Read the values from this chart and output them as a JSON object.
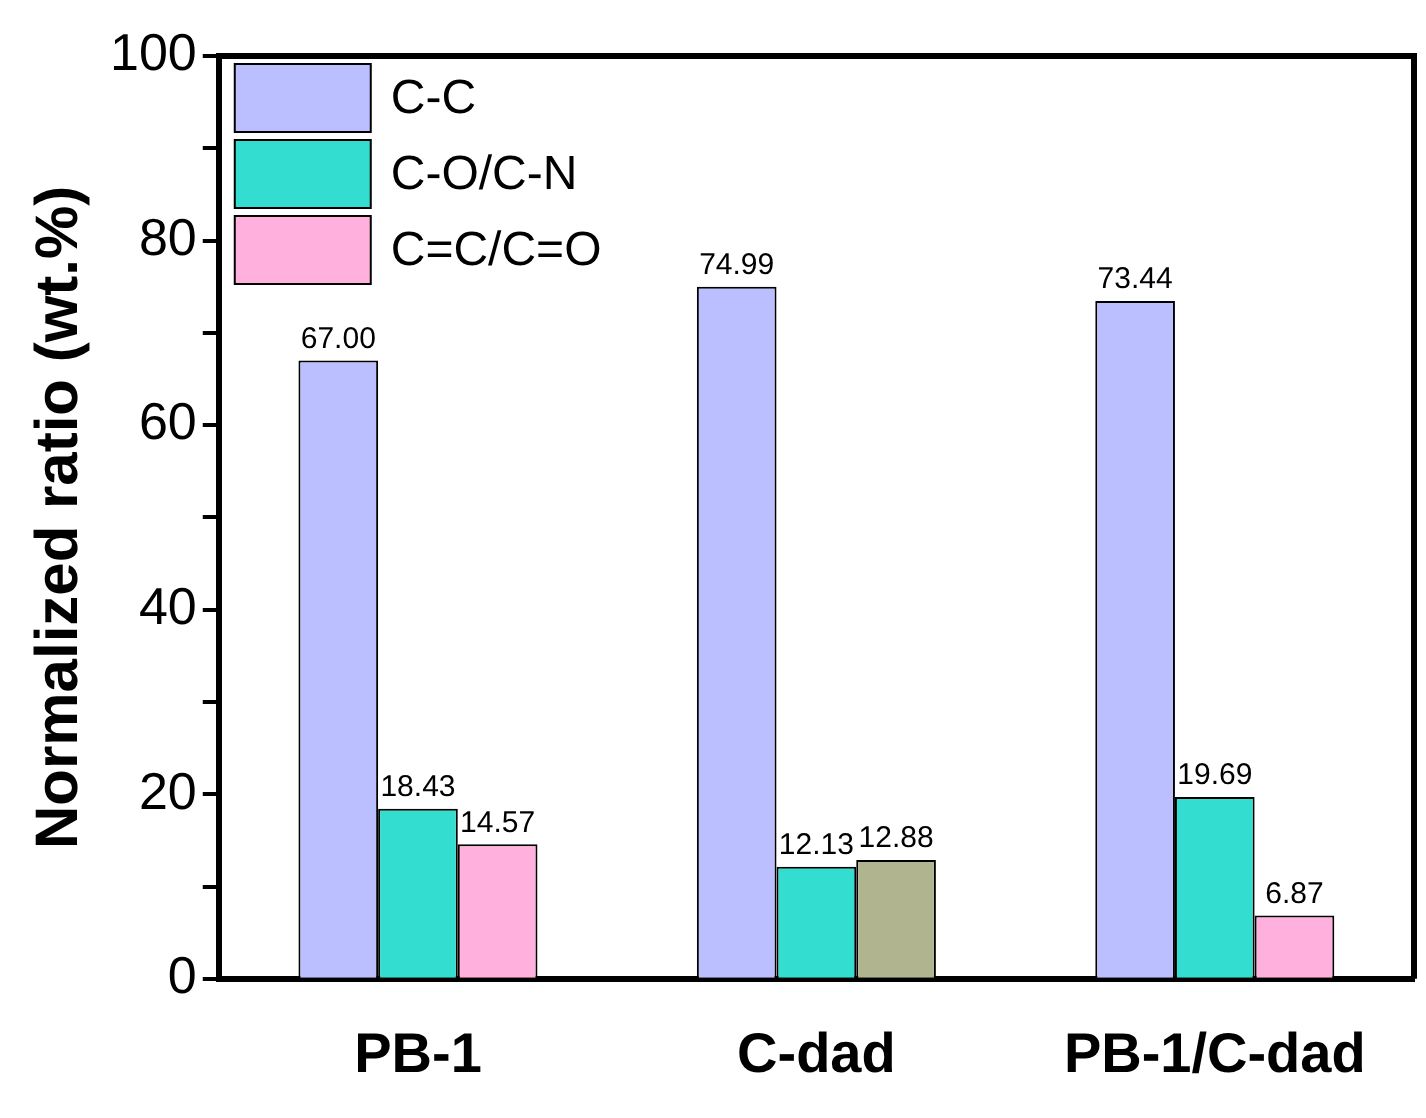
{
  "chart_data": {
    "type": "bar",
    "ylabel": "Normalized ratio (wt.%)",
    "categories": [
      "PB-1",
      "C-dad",
      "PB-1/C-dad"
    ],
    "series": [
      {
        "name": "C-C",
        "color": "#bbbfff",
        "values": [
          67.0,
          74.99,
          73.44
        ],
        "value_labels": [
          "67.00",
          "74.99",
          "73.44"
        ]
      },
      {
        "name": "C-O/C-N",
        "color": "#33ddcf",
        "values": [
          18.43,
          12.13,
          19.69
        ],
        "value_labels": [
          "18.43",
          "12.13",
          "19.69"
        ]
      },
      {
        "name": "C=C/C=O",
        "color": "#ffb0dd",
        "colors": [
          "#ffb0dd",
          "#b1b58f",
          "#ffb0dd"
        ],
        "values": [
          14.57,
          12.88,
          6.87
        ],
        "value_labels": [
          "14.57",
          "12.88",
          "6.87"
        ]
      }
    ],
    "ylim": [
      0,
      100
    ],
    "yticks": [
      0,
      {
        "value": 10,
        "label": null
      },
      20,
      {
        "value": 30,
        "label": null
      },
      40,
      {
        "value": 50,
        "label": null
      },
      60,
      {
        "value": 70,
        "label": null
      },
      80,
      {
        "value": 90,
        "label": null
      },
      100
    ],
    "legend": "top left"
  }
}
